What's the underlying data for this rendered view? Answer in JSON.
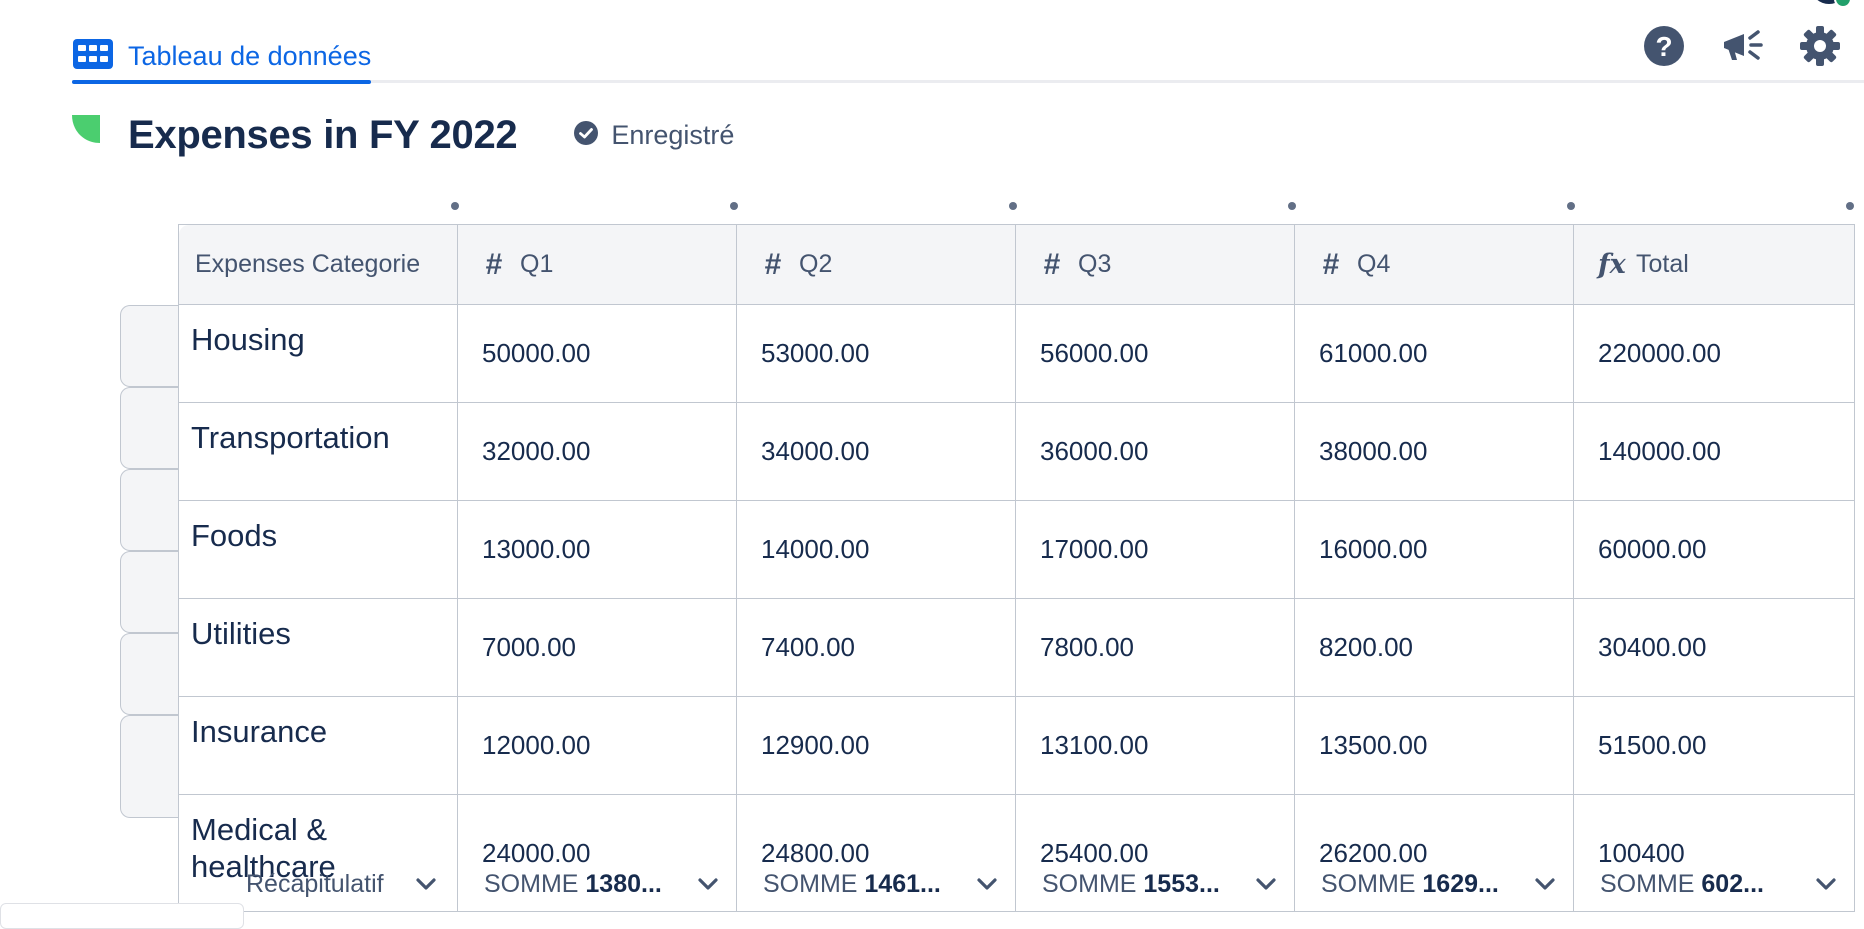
{
  "tab": {
    "label": "Tableau de données",
    "icon": "table-grid-icon"
  },
  "toolbar": {
    "icons": [
      "help-icon",
      "announcement-megaphone-icon",
      "settings-gear-icon"
    ]
  },
  "page": {
    "title": "Expenses in FY 2022",
    "status": "Enregistré"
  },
  "colors": {
    "accent": "#0c66e4",
    "emoji_green": "#4bce6f",
    "text": "#172b4d"
  },
  "table": {
    "headers": [
      {
        "label": "Expenses Categorie",
        "type_icon": ""
      },
      {
        "label": "Q1",
        "type_icon": "#"
      },
      {
        "label": "Q2",
        "type_icon": "#"
      },
      {
        "label": "Q3",
        "type_icon": "#"
      },
      {
        "label": "Q4",
        "type_icon": "#"
      },
      {
        "label": "Total",
        "type_icon": "fx"
      }
    ],
    "rows": [
      {
        "category": "Housing",
        "q1": "50000.00",
        "q2": "53000.00",
        "q3": "56000.00",
        "q4": "61000.00",
        "total": "220000.00"
      },
      {
        "category": "Transportation",
        "q1": "32000.00",
        "q2": "34000.00",
        "q3": "36000.00",
        "q4": "38000.00",
        "total": "140000.00"
      },
      {
        "category": "Foods",
        "q1": "13000.00",
        "q2": "14000.00",
        "q3": "17000.00",
        "q4": "16000.00",
        "total": "60000.00"
      },
      {
        "category": "Utilities",
        "q1": "7000.00",
        "q2": "7400.00",
        "q3": "7800.00",
        "q4": "8200.00",
        "total": "30400.00"
      },
      {
        "category": "Insurance",
        "q1": "12000.00",
        "q2": "12900.00",
        "q3": "13100.00",
        "q4": "13500.00",
        "total": "51500.00"
      },
      {
        "category": "Medical & healthcare",
        "q1": "24000.00",
        "q2": "24800.00",
        "q3": "25400.00",
        "q4": "26200.00",
        "total": "100400"
      }
    ]
  },
  "summary": {
    "label": "Récapitulatif",
    "cells": [
      {
        "prefix": "SOMME",
        "value": "1380..."
      },
      {
        "prefix": "SOMME",
        "value": "1461..."
      },
      {
        "prefix": "SOMME",
        "value": "1553..."
      },
      {
        "prefix": "SOMME",
        "value": "1629..."
      },
      {
        "prefix": "SOMME",
        "value": "602..."
      }
    ]
  }
}
